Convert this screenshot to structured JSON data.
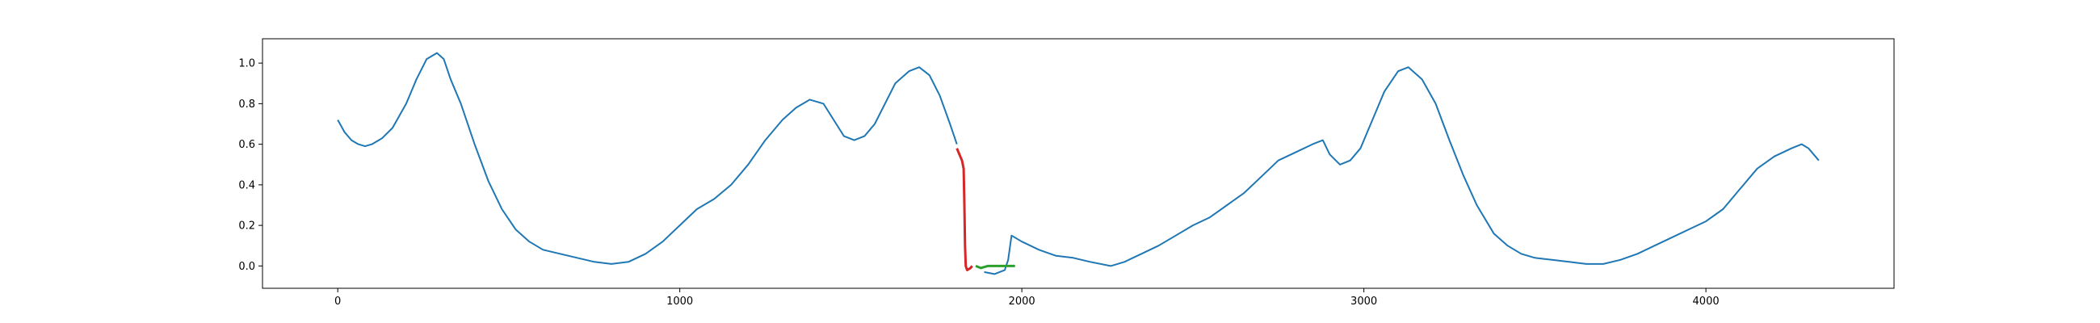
{
  "chart_data": {
    "type": "line",
    "title": "",
    "xlabel": "",
    "ylabel": "",
    "xlim": [
      -220,
      4550
    ],
    "ylim": [
      -0.11,
      1.12
    ],
    "x_ticks": [
      0,
      1000,
      2000,
      3000,
      4000
    ],
    "x_tick_labels": [
      "0",
      "1000",
      "2000",
      "3000",
      "4000"
    ],
    "y_ticks": [
      0.0,
      0.2,
      0.4,
      0.6,
      0.8,
      1.0
    ],
    "y_tick_labels": [
      "0.0",
      "0.2",
      "0.4",
      "0.6",
      "0.8",
      "1.0"
    ],
    "grid": false,
    "legend": "none",
    "series": [
      {
        "color": "#1f77b4",
        "points": [
          [
            0,
            0.72
          ],
          [
            20,
            0.66
          ],
          [
            40,
            0.62
          ],
          [
            60,
            0.6
          ],
          [
            80,
            0.59
          ],
          [
            100,
            0.6
          ],
          [
            130,
            0.63
          ],
          [
            160,
            0.68
          ],
          [
            200,
            0.8
          ],
          [
            230,
            0.92
          ],
          [
            260,
            1.02
          ],
          [
            290,
            1.05
          ],
          [
            310,
            1.02
          ],
          [
            330,
            0.92
          ],
          [
            360,
            0.8
          ],
          [
            400,
            0.6
          ],
          [
            440,
            0.42
          ],
          [
            480,
            0.28
          ],
          [
            520,
            0.18
          ],
          [
            560,
            0.12
          ],
          [
            600,
            0.08
          ],
          [
            650,
            0.06
          ],
          [
            700,
            0.04
          ],
          [
            750,
            0.02
          ],
          [
            800,
            0.01
          ],
          [
            850,
            0.02
          ],
          [
            900,
            0.06
          ],
          [
            950,
            0.12
          ],
          [
            1000,
            0.2
          ],
          [
            1050,
            0.28
          ],
          [
            1100,
            0.33
          ],
          [
            1150,
            0.4
          ],
          [
            1200,
            0.5
          ],
          [
            1250,
            0.62
          ],
          [
            1300,
            0.72
          ],
          [
            1340,
            0.78
          ],
          [
            1380,
            0.82
          ],
          [
            1420,
            0.8
          ],
          [
            1450,
            0.72
          ],
          [
            1480,
            0.64
          ],
          [
            1510,
            0.62
          ],
          [
            1540,
            0.64
          ],
          [
            1570,
            0.7
          ],
          [
            1600,
            0.8
          ],
          [
            1630,
            0.9
          ],
          [
            1670,
            0.96
          ],
          [
            1700,
            0.98
          ],
          [
            1730,
            0.94
          ],
          [
            1760,
            0.84
          ],
          [
            1790,
            0.7
          ],
          [
            1810,
            0.6
          ]
        ]
      },
      {
        "color": "#1f77b4",
        "points": [
          [
            1890,
            -0.03
          ],
          [
            1920,
            -0.04
          ],
          [
            1950,
            -0.02
          ],
          [
            1960,
            0.03
          ],
          [
            1970,
            0.15
          ],
          [
            2000,
            0.12
          ],
          [
            2050,
            0.08
          ],
          [
            2100,
            0.05
          ],
          [
            2150,
            0.04
          ],
          [
            2200,
            0.02
          ],
          [
            2260,
            0.0
          ],
          [
            2300,
            0.02
          ],
          [
            2350,
            0.06
          ],
          [
            2400,
            0.1
          ],
          [
            2450,
            0.15
          ],
          [
            2500,
            0.2
          ],
          [
            2550,
            0.24
          ],
          [
            2600,
            0.3
          ],
          [
            2650,
            0.36
          ],
          [
            2700,
            0.44
          ],
          [
            2750,
            0.52
          ],
          [
            2800,
            0.56
          ],
          [
            2850,
            0.6
          ],
          [
            2880,
            0.62
          ],
          [
            2900,
            0.55
          ],
          [
            2930,
            0.5
          ],
          [
            2960,
            0.52
          ],
          [
            2990,
            0.58
          ],
          [
            3020,
            0.7
          ],
          [
            3060,
            0.86
          ],
          [
            3100,
            0.96
          ],
          [
            3130,
            0.98
          ],
          [
            3170,
            0.92
          ],
          [
            3210,
            0.8
          ],
          [
            3250,
            0.62
          ],
          [
            3290,
            0.45
          ],
          [
            3330,
            0.3
          ],
          [
            3380,
            0.16
          ],
          [
            3420,
            0.1
          ],
          [
            3460,
            0.06
          ],
          [
            3500,
            0.04
          ],
          [
            3550,
            0.03
          ],
          [
            3600,
            0.02
          ],
          [
            3650,
            0.01
          ],
          [
            3700,
            0.01
          ],
          [
            3750,
            0.03
          ],
          [
            3800,
            0.06
          ],
          [
            3850,
            0.1
          ],
          [
            3900,
            0.14
          ],
          [
            3950,
            0.18
          ],
          [
            4000,
            0.22
          ],
          [
            4050,
            0.28
          ],
          [
            4100,
            0.38
          ],
          [
            4150,
            0.48
          ],
          [
            4200,
            0.54
          ],
          [
            4250,
            0.58
          ],
          [
            4280,
            0.6
          ],
          [
            4300,
            0.58
          ],
          [
            4320,
            0.54
          ],
          [
            4330,
            0.52
          ]
        ]
      },
      {
        "color": "#d62728",
        "points": [
          [
            1810,
            0.58
          ],
          [
            1825,
            0.52
          ],
          [
            1830,
            0.48
          ],
          [
            1832,
            0.3
          ],
          [
            1834,
            0.1
          ],
          [
            1836,
            0.0
          ],
          [
            1840,
            -0.02
          ],
          [
            1850,
            -0.01
          ],
          [
            1855,
            0.0
          ]
        ]
      },
      {
        "color": "#2ca02c",
        "points": [
          [
            1865,
            0.0
          ],
          [
            1880,
            -0.01
          ],
          [
            1900,
            0.0
          ],
          [
            1930,
            0.0
          ],
          [
            1960,
            0.0
          ],
          [
            1980,
            0.0
          ]
        ]
      }
    ]
  }
}
